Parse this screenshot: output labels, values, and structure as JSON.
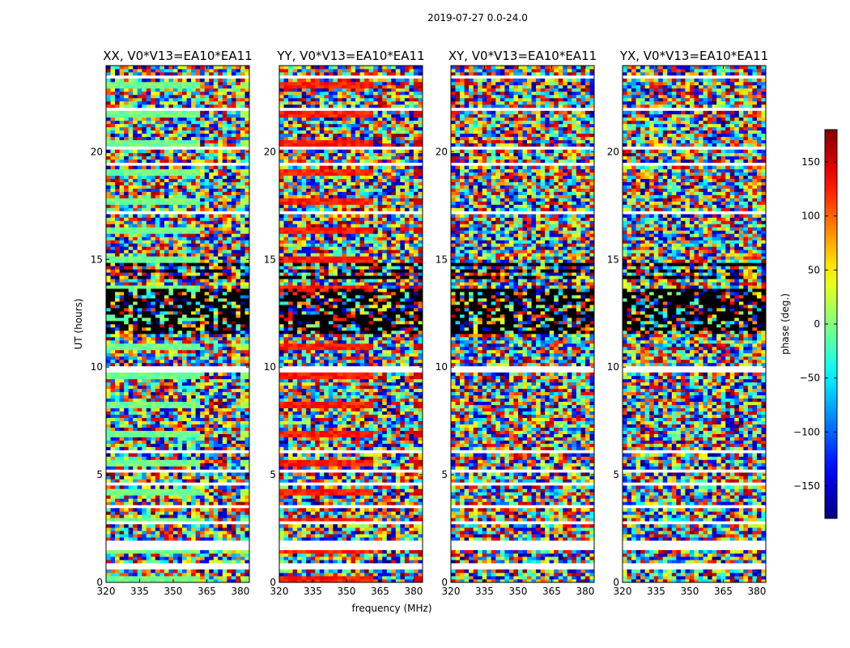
{
  "chart_data": {
    "type": "heatmap",
    "suptitle": "2019-07-27 0.0-24.0",
    "xlabel": "frequency (MHz)",
    "ylabel": "UT (hours)",
    "xlim": [
      320,
      384
    ],
    "ylim": [
      0,
      24
    ],
    "xticks": [
      "320",
      "335",
      "350",
      "365",
      "380"
    ],
    "yticks": [
      "0",
      "5",
      "10",
      "15",
      "20"
    ],
    "panels": [
      {
        "title": "XX, V0*V13=EA10*EA11",
        "coherent": true,
        "low_phase": -5,
        "high_phase": 15
      },
      {
        "title": "YY, V0*V13=EA10*EA11",
        "coherent": true,
        "low_phase": 125,
        "high_phase": 150
      },
      {
        "title": "XY, V0*V13=EA10*EA11",
        "coherent": false
      },
      {
        "title": "YX, V0*V13=EA10*EA11",
        "coherent": false
      }
    ],
    "colorbar": {
      "label": "phase (deg.)",
      "range": [
        -180,
        180
      ],
      "ticks": [
        "150",
        "100",
        "50",
        "0",
        "−50",
        "−100",
        "−150"
      ],
      "tick_values": [
        150,
        100,
        50,
        0,
        -50,
        -100,
        -150
      ],
      "colormap": "jet"
    },
    "coherent_split_mhz": 362,
    "flagged_hours": [
      [
        0.55,
        0.95
      ],
      [
        1.5,
        1.9
      ],
      [
        2.7,
        2.9
      ],
      [
        3.4,
        3.6
      ],
      [
        4.55,
        4.65
      ],
      [
        5.1,
        5.2
      ],
      [
        6.0,
        6.1
      ],
      [
        9.8,
        10.1
      ],
      [
        17.05,
        17.2
      ],
      [
        19.3,
        19.45
      ],
      [
        20.15,
        20.3
      ],
      [
        21.95,
        22.1
      ],
      [
        22.9,
        23.0
      ],
      [
        23.45,
        23.55
      ]
    ]
  }
}
